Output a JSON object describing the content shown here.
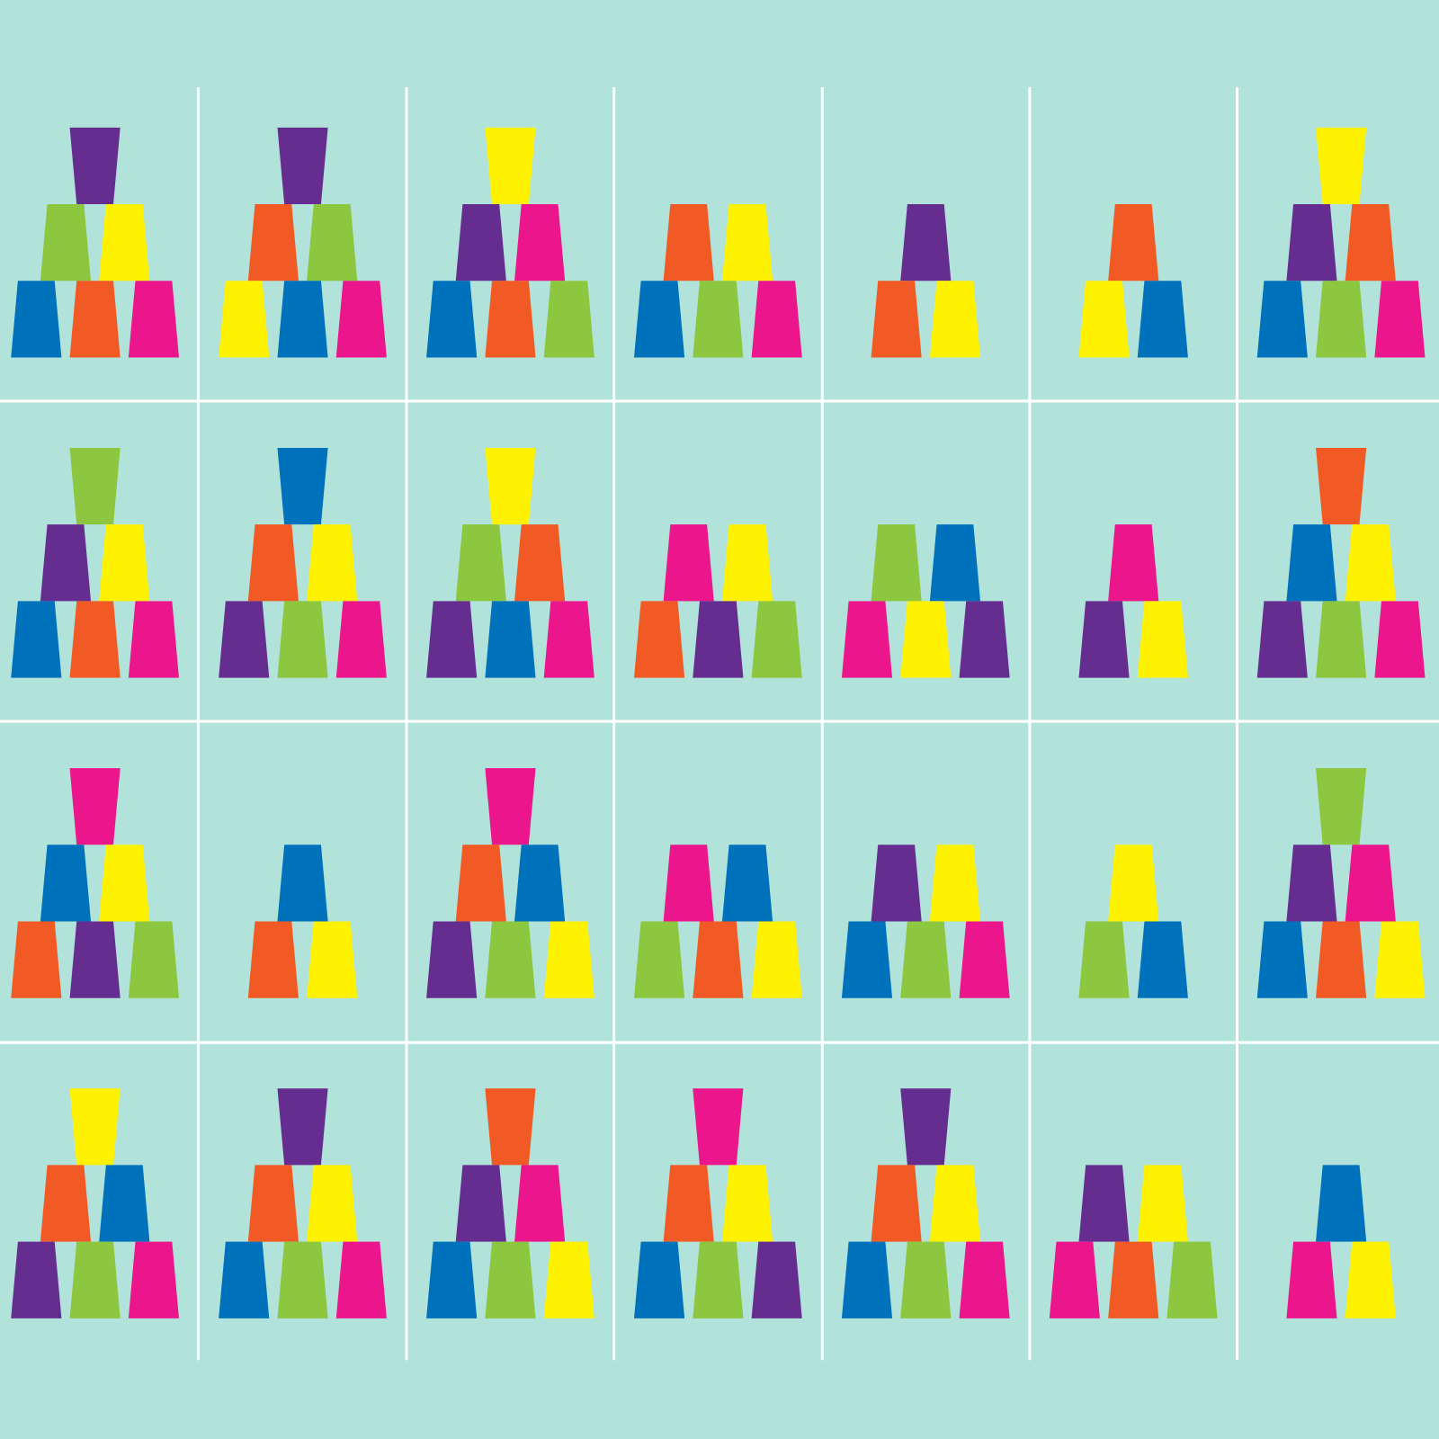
{
  "cards": [
    {
      "levels": [
        [
          "#662d91"
        ],
        [
          "#8dc63f",
          "#fff200"
        ],
        [
          "#0072bc",
          "#f15a24",
          "#ec168c"
        ]
      ]
    },
    {
      "levels": [
        [
          "#662d91"
        ],
        [
          "#f15a24",
          "#8dc63f"
        ],
        [
          "#fff200",
          "#0072bc",
          "#ec168c"
        ]
      ]
    },
    {
      "levels": [
        [
          "#fff200"
        ],
        [
          "#662d91",
          "#ec168c"
        ],
        [
          "#0072bc",
          "#f15a24",
          "#8dc63f"
        ]
      ]
    },
    {
      "levels": [
        [
          "#f15a24",
          "#fff200"
        ],
        [
          "#0072bc",
          "#8dc63f",
          "#ec168c"
        ]
      ]
    },
    {
      "levels": [
        [
          "#662d91"
        ],
        [
          "#f15a24",
          "#fff200"
        ]
      ]
    },
    {
      "levels": [
        [
          "#f15a24"
        ],
        [
          "#fff200",
          "#0072bc"
        ]
      ]
    },
    {
      "levels": [
        [
          "#fff200"
        ],
        [
          "#662d91",
          "#f15a24"
        ],
        [
          "#0072bc",
          "#8dc63f",
          "#ec168c"
        ]
      ]
    },
    {
      "levels": [
        [
          "#8dc63f"
        ],
        [
          "#662d91",
          "#fff200"
        ],
        [
          "#0072bc",
          "#f15a24",
          "#ec168c"
        ]
      ]
    },
    {
      "levels": [
        [
          "#0072bc"
        ],
        [
          "#f15a24",
          "#fff200"
        ],
        [
          "#662d91",
          "#8dc63f",
          "#ec168c"
        ]
      ]
    },
    {
      "levels": [
        [
          "#fff200"
        ],
        [
          "#8dc63f",
          "#f15a24"
        ],
        [
          "#662d91",
          "#0072bc",
          "#ec168c"
        ]
      ]
    },
    {
      "levels": [
        [
          "#ec168c",
          "#fff200"
        ],
        [
          "#f15a24",
          "#662d91",
          "#8dc63f"
        ]
      ]
    },
    {
      "levels": [
        [
          "#8dc63f",
          "#0072bc"
        ],
        [
          "#ec168c",
          "#fff200",
          "#662d91"
        ]
      ]
    },
    {
      "levels": [
        [
          "#ec168c"
        ],
        [
          "#662d91",
          "#fff200"
        ]
      ]
    },
    {
      "levels": [
        [
          "#f15a24"
        ],
        [
          "#0072bc",
          "#fff200"
        ],
        [
          "#662d91",
          "#8dc63f",
          "#ec168c"
        ]
      ]
    },
    {
      "levels": [
        [
          "#ec168c"
        ],
        [
          "#0072bc",
          "#fff200"
        ],
        [
          "#f15a24",
          "#662d91",
          "#8dc63f"
        ]
      ]
    },
    {
      "levels": [
        [
          "#0072bc"
        ],
        [
          "#f15a24",
          "#fff200"
        ]
      ]
    },
    {
      "levels": [
        [
          "#ec168c"
        ],
        [
          "#f15a24",
          "#0072bc"
        ],
        [
          "#662d91",
          "#8dc63f",
          "#fff200"
        ]
      ]
    },
    {
      "levels": [
        [
          "#ec168c",
          "#0072bc"
        ],
        [
          "#8dc63f",
          "#f15a24",
          "#fff200"
        ]
      ]
    },
    {
      "levels": [
        [
          "#662d91",
          "#fff200"
        ],
        [
          "#0072bc",
          "#8dc63f",
          "#ec168c"
        ]
      ]
    },
    {
      "levels": [
        [
          "#fff200"
        ],
        [
          "#8dc63f",
          "#0072bc"
        ]
      ]
    },
    {
      "levels": [
        [
          "#8dc63f"
        ],
        [
          "#662d91",
          "#ec168c"
        ],
        [
          "#0072bc",
          "#f15a24",
          "#fff200"
        ]
      ]
    },
    {
      "levels": [
        [
          "#fff200"
        ],
        [
          "#f15a24",
          "#0072bc"
        ],
        [
          "#662d91",
          "#8dc63f",
          "#ec168c"
        ]
      ]
    },
    {
      "levels": [
        [
          "#662d91"
        ],
        [
          "#f15a24",
          "#fff200"
        ],
        [
          "#0072bc",
          "#8dc63f",
          "#ec168c"
        ]
      ]
    },
    {
      "levels": [
        [
          "#f15a24"
        ],
        [
          "#662d91",
          "#ec168c"
        ],
        [
          "#0072bc",
          "#8dc63f",
          "#fff200"
        ]
      ]
    },
    {
      "levels": [
        [
          "#ec168c"
        ],
        [
          "#f15a24",
          "#fff200"
        ],
        [
          "#0072bc",
          "#8dc63f",
          "#662d91"
        ]
      ]
    },
    {
      "levels": [
        [
          "#662d91"
        ],
        [
          "#f15a24",
          "#fff200"
        ],
        [
          "#0072bc",
          "#8dc63f",
          "#ec168c"
        ]
      ]
    },
    {
      "levels": [
        [
          "#662d91",
          "#fff200"
        ],
        [
          "#ec168c",
          "#f15a24",
          "#8dc63f"
        ]
      ]
    },
    {
      "levels": [
        [
          "#0072bc"
        ],
        [
          "#ec168c",
          "#fff200"
        ]
      ]
    }
  ]
}
